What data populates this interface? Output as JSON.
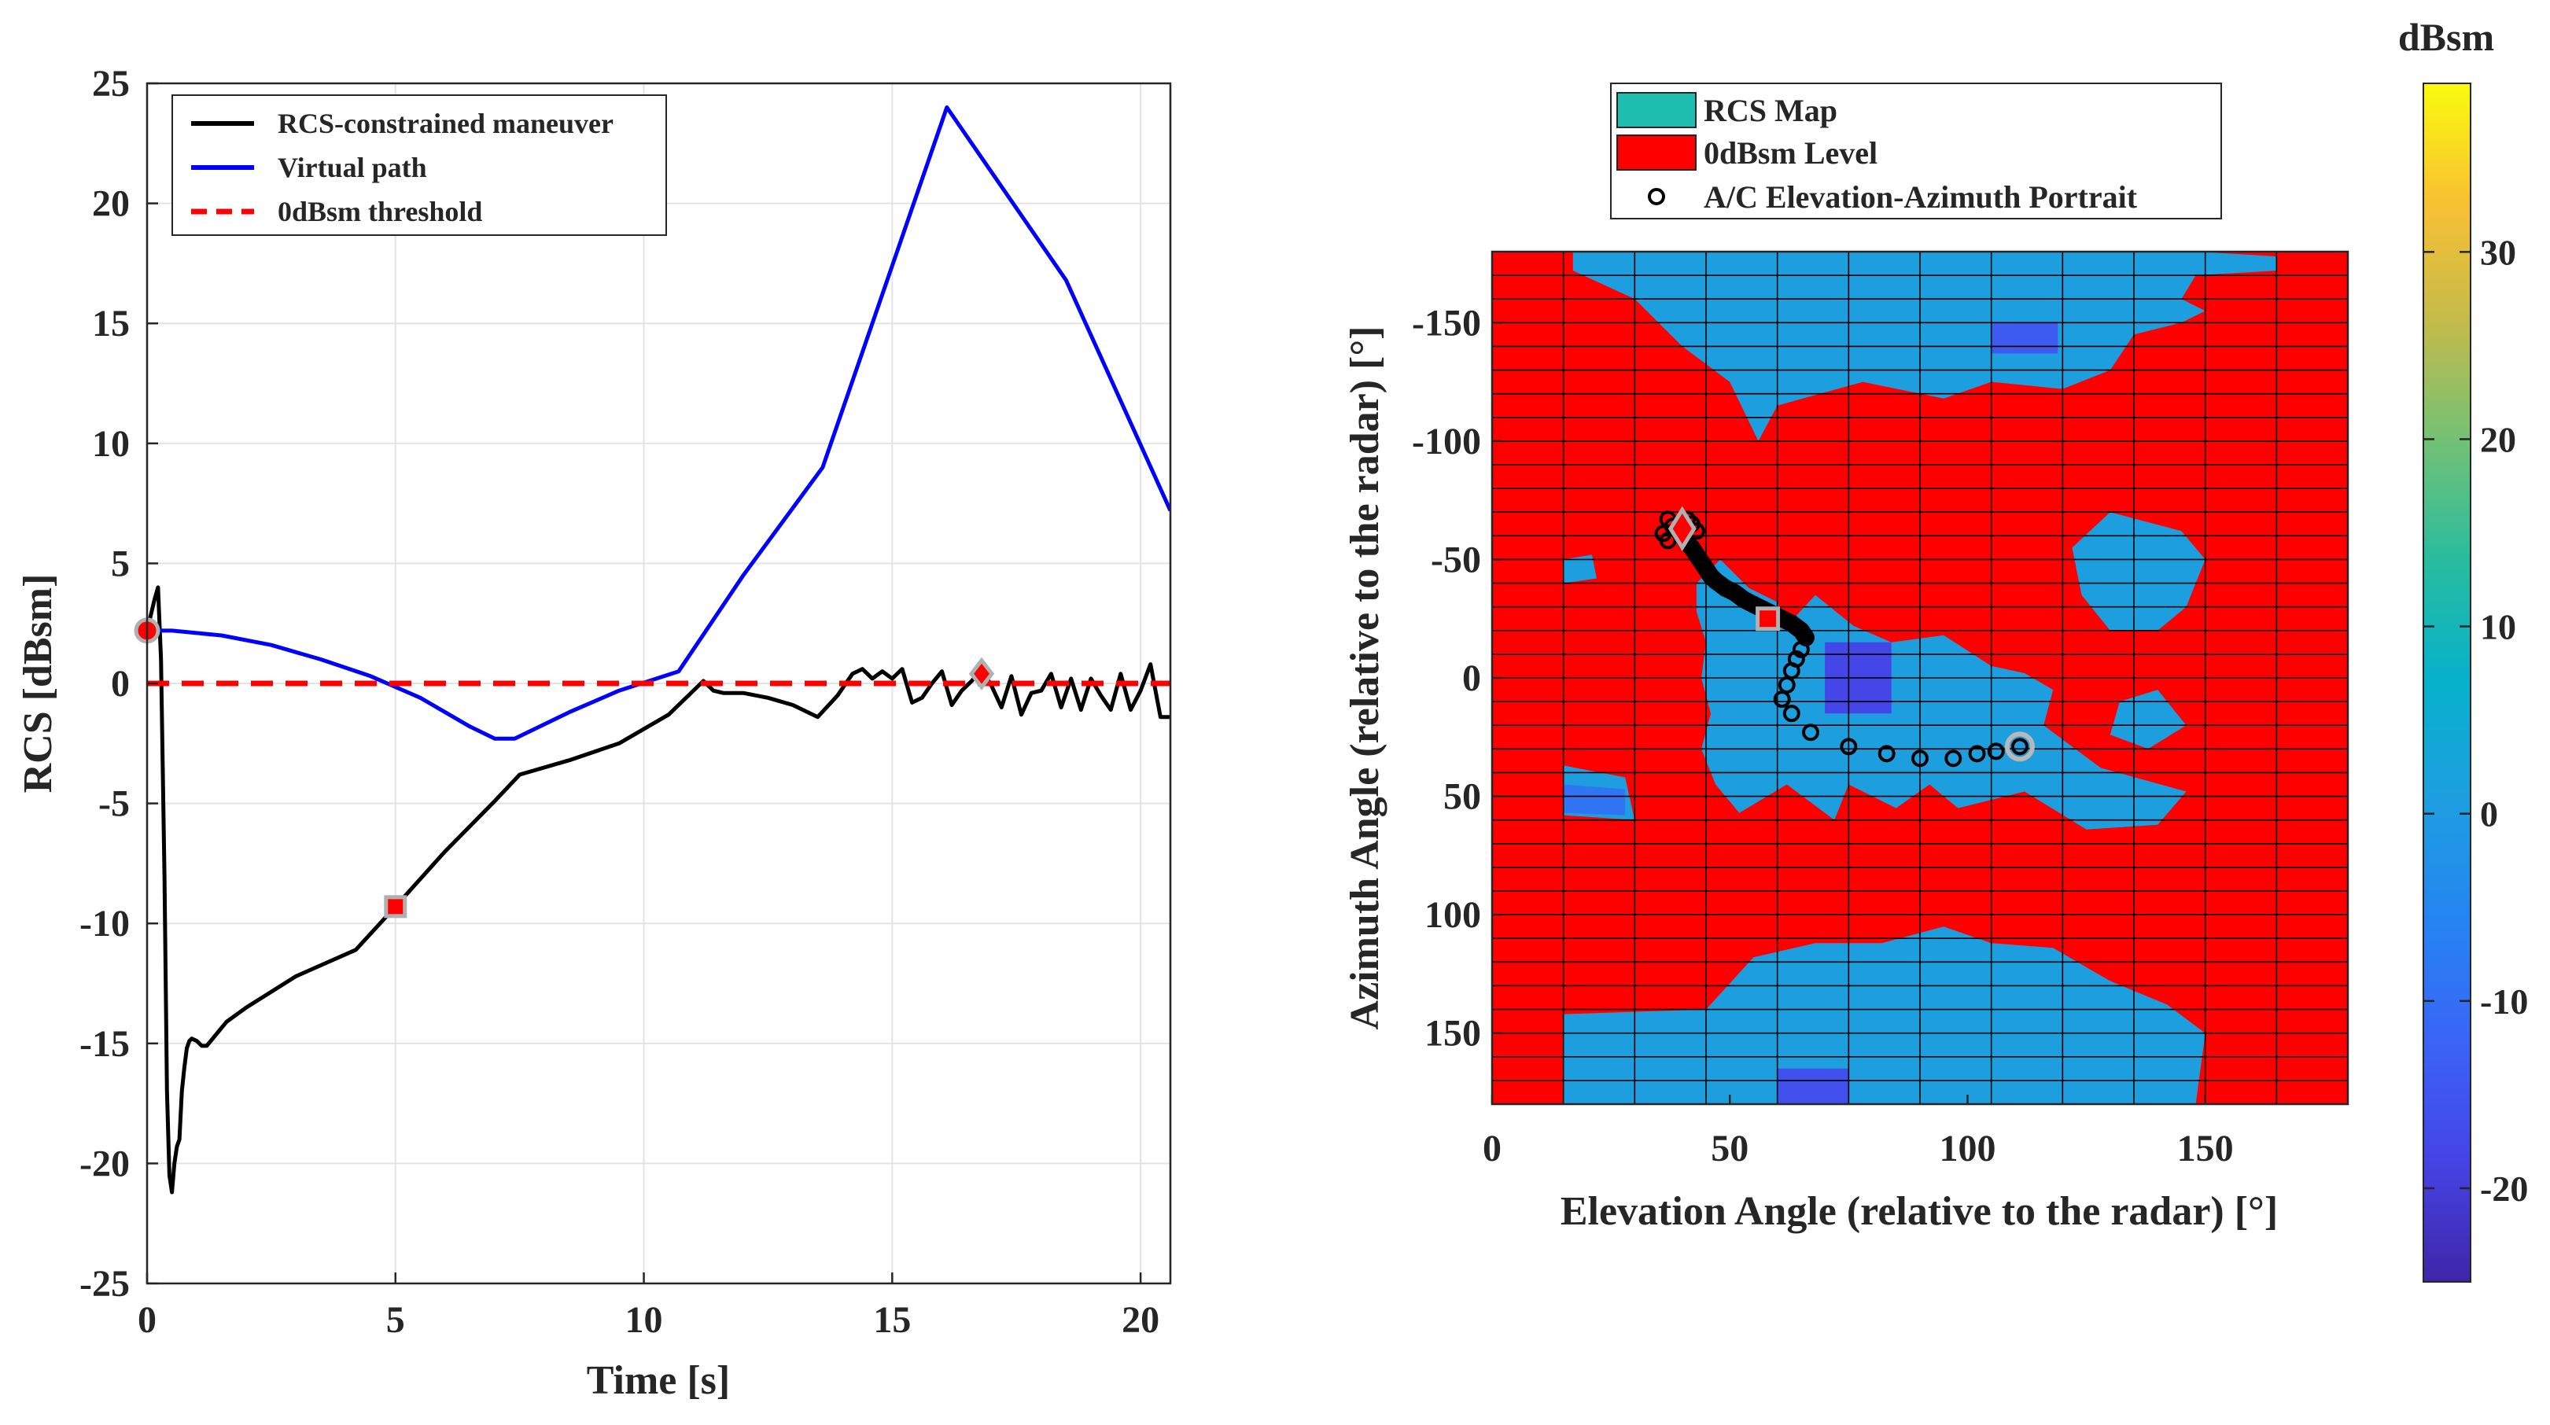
{
  "chart_data": [
    {
      "type": "line",
      "title": "",
      "xlabel": "Time [s]",
      "ylabel": "RCS [dBsm]",
      "xlim": [
        0,
        20.6
      ],
      "ylim": [
        -25,
        25
      ],
      "xticks": [
        0,
        5,
        10,
        15,
        20
      ],
      "yticks": [
        -25,
        -20,
        -15,
        -10,
        -5,
        0,
        5,
        10,
        15,
        20,
        25
      ],
      "grid": true,
      "legend_position": "top-left",
      "series": [
        {
          "name": "RCS-constrained maneuver",
          "color": "#000000",
          "style": "solid",
          "x": [
            0,
            0.15,
            0.22,
            0.28,
            0.35,
            0.4,
            0.45,
            0.5,
            0.55,
            0.6,
            0.65,
            0.7,
            0.75,
            0.8,
            0.85,
            0.9,
            1.0,
            1.1,
            1.2,
            1.4,
            1.6,
            2.0,
            3.0,
            4.2,
            5.0,
            6.0,
            7.0,
            7.5,
            8.5,
            9.5,
            10.5,
            11.2,
            11.4,
            11.6,
            12.0,
            12.5,
            13.0,
            13.5,
            13.9,
            14.2,
            14.4,
            14.6,
            14.8,
            15.0,
            15.2,
            15.4,
            15.6,
            15.8,
            16.0,
            16.2,
            16.4,
            16.6,
            16.8,
            17.0,
            17.2,
            17.4,
            17.6,
            17.8,
            18.0,
            18.2,
            18.4,
            18.6,
            18.8,
            19.0,
            19.2,
            19.4,
            19.6,
            19.8,
            20.0,
            20.2,
            20.4,
            20.6
          ],
          "y": [
            2.2,
            3.5,
            4.0,
            1.0,
            -8,
            -17,
            -20.5,
            -21.2,
            -20,
            -19.3,
            -19,
            -17,
            -16,
            -15.2,
            -14.9,
            -14.8,
            -14.9,
            -15.1,
            -15.1,
            -14.6,
            -14.1,
            -13.5,
            -12.2,
            -11.1,
            -9.3,
            -7.0,
            -4.9,
            -3.8,
            -3.2,
            -2.5,
            -1.3,
            0.1,
            -0.3,
            -0.4,
            -0.4,
            -0.6,
            -0.9,
            -1.4,
            -0.5,
            0.4,
            0.6,
            0.2,
            0.5,
            0.2,
            0.6,
            -0.8,
            -0.6,
            0.0,
            0.5,
            -0.9,
            -0.3,
            0.1,
            0.6,
            -0.1,
            -1.0,
            0.3,
            -1.3,
            -0.4,
            -0.3,
            0.4,
            -1.0,
            0.2,
            -1.1,
            0.2,
            -0.5,
            -1.1,
            0.4,
            -1.1,
            -0.3,
            0.8,
            -1.4,
            -1.4
          ]
        },
        {
          "name": "Virtual path",
          "color": "#0000ff",
          "style": "solid",
          "x": [
            0,
            0.5,
            1.5,
            2.5,
            3.5,
            4.5,
            5.5,
            6.5,
            7.0,
            7.4,
            8.5,
            9.5,
            10.7,
            12.0,
            13.6,
            16.1,
            18.5,
            20.6
          ],
          "y": [
            2.2,
            2.2,
            2.0,
            1.6,
            1.0,
            0.3,
            -0.6,
            -1.8,
            -2.3,
            -2.3,
            -1.2,
            -0.3,
            0.5,
            4.5,
            9.0,
            24.0,
            16.8,
            7.2
          ]
        },
        {
          "name": "0dBsm threshold",
          "color": "#ff0000",
          "style": "dashed",
          "x": [
            0,
            20.6
          ],
          "y": [
            0,
            0
          ]
        }
      ],
      "markers": [
        {
          "shape": "circle",
          "x": 0,
          "y": 2.2
        },
        {
          "shape": "square",
          "x": 5,
          "y": -9.3
        },
        {
          "shape": "diamond",
          "x": 16.8,
          "y": 0.4
        }
      ]
    },
    {
      "type": "heatmap",
      "title": "",
      "xlabel": "Elevation Angle (relative to the radar) [°]",
      "ylabel": "Azimuth Angle (relative to the radar) [°]",
      "xlim": [
        0,
        180
      ],
      "ylim": [
        -180,
        180
      ],
      "xticks": [
        0,
        50,
        100,
        150
      ],
      "yticks": [
        -150,
        -100,
        -50,
        0,
        50,
        100,
        150
      ],
      "y_direction": "reversed",
      "grid_step_x": 15,
      "grid_step_y": 10,
      "legend_position": "top",
      "legend": [
        "RCS Map",
        "0dBsm Level",
        "A/C Elevation-Azimuth Portrait"
      ],
      "threshold_color": "#ff0000",
      "regions": [
        {
          "level": 1,
          "points": [
            [
              17,
              -180
            ],
            [
              148,
              -180
            ],
            [
              165,
              -178
            ],
            [
              165,
              -172
            ],
            [
              148,
              -170
            ],
            [
              145,
              -160
            ],
            [
              150,
              -155
            ],
            [
              145,
              -150
            ],
            [
              135,
              -145
            ],
            [
              130,
              -130
            ],
            [
              120,
              -122
            ],
            [
              105,
              -125
            ],
            [
              95,
              -118
            ],
            [
              78,
              -125
            ],
            [
              60,
              -115
            ],
            [
              56,
              -100
            ],
            [
              50,
              -125
            ],
            [
              40,
              -140
            ],
            [
              30,
              -160
            ],
            [
              17,
              -172
            ]
          ]
        },
        {
          "level": -14,
          "points": [
            [
              105,
              -150
            ],
            [
              119,
              -150
            ],
            [
              119,
              -137
            ],
            [
              105,
              -137
            ]
          ]
        },
        {
          "level": 1,
          "points": [
            [
              48,
              -50
            ],
            [
              54,
              -38
            ],
            [
              60,
              -32
            ],
            [
              62,
              -22
            ],
            [
              68,
              -35
            ],
            [
              76,
              -22
            ],
            [
              84,
              -15
            ],
            [
              95,
              -18
            ],
            [
              105,
              -5
            ],
            [
              112,
              -2
            ],
            [
              118,
              5
            ],
            [
              116,
              20
            ],
            [
              128,
              38
            ],
            [
              146,
              48
            ],
            [
              140,
              62
            ],
            [
              125,
              64
            ],
            [
              112,
              48
            ],
            [
              98,
              55
            ],
            [
              92,
              45
            ],
            [
              85,
              55
            ],
            [
              75,
              45
            ],
            [
              72,
              60
            ],
            [
              62,
              45
            ],
            [
              52,
              57
            ],
            [
              47,
              45
            ],
            [
              44,
              30
            ],
            [
              46,
              15
            ],
            [
              44,
              0
            ],
            [
              45,
              -15
            ],
            [
              43,
              -28
            ],
            [
              43,
              -40
            ]
          ]
        },
        {
          "level": -18,
          "points": [
            [
              70,
              -15
            ],
            [
              84,
              -15
            ],
            [
              84,
              15
            ],
            [
              70,
              15
            ]
          ]
        },
        {
          "level": 1,
          "points": [
            [
              122,
              -55
            ],
            [
              130,
              -70
            ],
            [
              145,
              -62
            ],
            [
              150,
              -50
            ],
            [
              146,
              -30
            ],
            [
              140,
              -20
            ],
            [
              130,
              -20
            ],
            [
              124,
              -35
            ]
          ]
        },
        {
          "level": 1,
          "points": [
            [
              132,
              10
            ],
            [
              140,
              5
            ],
            [
              146,
              20
            ],
            [
              138,
              30
            ],
            [
              130,
              24
            ]
          ]
        },
        {
          "level": 1,
          "points": [
            [
              15,
              -50
            ],
            [
              21,
              -52
            ],
            [
              22,
              -42
            ],
            [
              15,
              -40
            ]
          ]
        },
        {
          "level": 1,
          "points": [
            [
              15,
              37
            ],
            [
              28,
              42
            ],
            [
              30,
              60
            ],
            [
              15,
              58
            ]
          ]
        },
        {
          "level": -9,
          "points": [
            [
              15,
              45
            ],
            [
              28,
              47
            ],
            [
              28,
              58
            ],
            [
              15,
              57
            ]
          ]
        },
        {
          "level": 1,
          "points": [
            [
              15,
              142
            ],
            [
              45,
              140
            ],
            [
              55,
              118
            ],
            [
              68,
              112
            ],
            [
              82,
              112
            ],
            [
              95,
              105
            ],
            [
              105,
              112
            ],
            [
              118,
              114
            ],
            [
              130,
              128
            ],
            [
              142,
              138
            ],
            [
              150,
              150
            ],
            [
              148,
              180
            ],
            [
              15,
              180
            ]
          ]
        },
        {
          "level": -16,
          "points": [
            [
              60,
              165
            ],
            [
              75,
              165
            ],
            [
              75,
              180
            ],
            [
              60,
              180
            ]
          ]
        },
        {
          "level": 1,
          "points": [
            [
              88,
              170
            ],
            [
              92,
              158
            ],
            [
              96,
              170
            ],
            [
              94,
              180
            ],
            [
              88,
              180
            ]
          ]
        }
      ],
      "trajectory": [
        {
          "el": 40,
          "az": -64
        },
        {
          "el": 40,
          "az": -60
        },
        {
          "el": 41,
          "az": -57
        },
        {
          "el": 42,
          "az": -55
        },
        {
          "el": 43,
          "az": -52
        },
        {
          "el": 44,
          "az": -49
        },
        {
          "el": 45,
          "az": -46
        },
        {
          "el": 46,
          "az": -43
        },
        {
          "el": 47,
          "az": -41
        },
        {
          "el": 49,
          "az": -38
        },
        {
          "el": 51,
          "az": -36
        },
        {
          "el": 53,
          "az": -33
        },
        {
          "el": 55,
          "az": -31
        },
        {
          "el": 57,
          "az": -29
        },
        {
          "el": 59,
          "az": -27
        },
        {
          "el": 61,
          "az": -25
        },
        {
          "el": 63,
          "az": -23
        },
        {
          "el": 65,
          "az": -20
        },
        {
          "el": 66,
          "az": -17
        },
        {
          "el": 65,
          "az": -12
        },
        {
          "el": 64,
          "az": -8
        },
        {
          "el": 63,
          "az": -3
        },
        {
          "el": 62,
          "az": 3
        },
        {
          "el": 61,
          "az": 9
        },
        {
          "el": 63,
          "az": 15
        },
        {
          "el": 67,
          "az": 23
        },
        {
          "el": 75,
          "az": 29
        },
        {
          "el": 83,
          "az": 32
        },
        {
          "el": 90,
          "az": 34
        },
        {
          "el": 97,
          "az": 34
        },
        {
          "el": 102,
          "az": 32
        },
        {
          "el": 106,
          "az": 31
        },
        {
          "el": 111,
          "az": 29
        }
      ],
      "trajectory_extra": [
        {
          "el": 36,
          "az": -61
        },
        {
          "el": 37,
          "az": -58
        },
        {
          "el": 38,
          "az": -64
        },
        {
          "el": 37,
          "az": -67
        },
        {
          "el": 41,
          "az": -67
        },
        {
          "el": 42,
          "az": -65
        },
        {
          "el": 43,
          "az": -62
        }
      ],
      "markers": [
        {
          "shape": "diamond",
          "el": 40,
          "az": -63
        },
        {
          "shape": "square",
          "el": 58,
          "az": -25
        },
        {
          "shape": "circle",
          "el": 111,
          "az": 29
        }
      ],
      "colorbar": {
        "label": "dBsm",
        "range": [
          -25,
          39
        ],
        "ticks": [
          -20,
          -10,
          0,
          10,
          20,
          30
        ]
      }
    }
  ]
}
